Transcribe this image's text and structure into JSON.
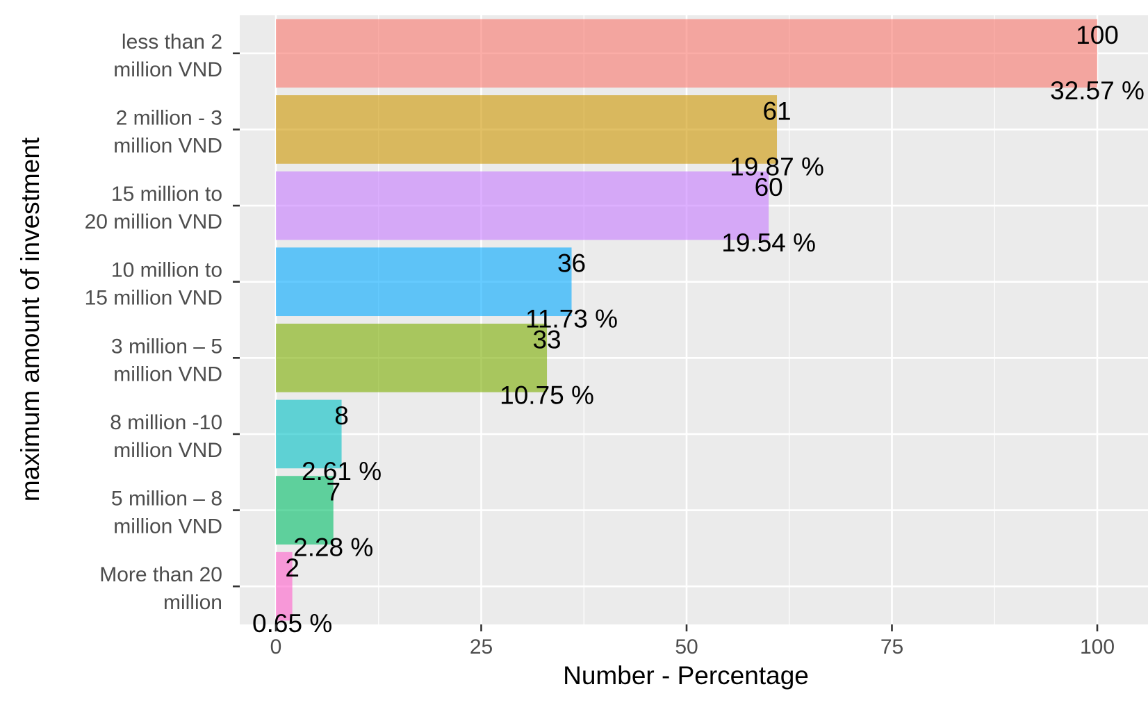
{
  "chart_data": {
    "type": "bar",
    "orientation": "horizontal",
    "title": "",
    "xlabel": "Number - Percentage",
    "ylabel": "maximum amount of investment",
    "xlim": [
      0,
      105
    ],
    "xticks": [
      0,
      25,
      50,
      75,
      100
    ],
    "grid": true,
    "legend": "none",
    "categories": [
      "less than 2 million VND",
      "2 million - 3 million VND",
      "15 million to 20 million VND",
      "10 million to 15 million VND",
      "3 million – 5 million VND",
      "8 million -10 million VND",
      "5 million – 8 million VND",
      "More than 20 million"
    ],
    "category_lines": [
      [
        "less than 2",
        "million VND"
      ],
      [
        "2 million - 3",
        "million VND"
      ],
      [
        "15 million to",
        "20 million VND"
      ],
      [
        "10 million to",
        "15 million VND"
      ],
      [
        "3 million – 5",
        "million VND"
      ],
      [
        "8 million -10",
        "million VND"
      ],
      [
        "5 million – 8",
        "million VND"
      ],
      [
        "More than 20",
        "million"
      ]
    ],
    "values": [
      100,
      61,
      60,
      36,
      33,
      8,
      7,
      2
    ],
    "value_labels": [
      "100",
      "61",
      "60",
      "36",
      "33",
      "8",
      "7",
      "2"
    ],
    "percent_labels": [
      "32.57 %",
      "19.87 %",
      "19.54 %",
      "11.73 %",
      "10.75 %",
      "2.61 %",
      "2.28 %",
      "0.65 %"
    ],
    "colors": [
      "#F8766D",
      "#CD9600",
      "#C77CFF",
      "#00A9FF",
      "#7CAE00",
      "#00BFC4",
      "#00BE67",
      "#FF61CC"
    ],
    "bar_opacity": 0.6,
    "panel_background": "#EBEBEB",
    "grid_color": "#FFFFFF"
  }
}
